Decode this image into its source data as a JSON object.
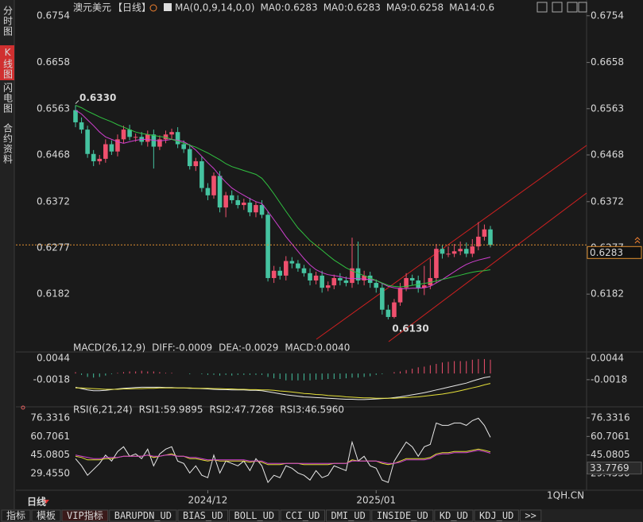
{
  "ui": {
    "side_tabs": [
      "分时图",
      "K线图",
      "闪电图",
      "合约资料"
    ],
    "active_side_tab": 1,
    "bottom_tabs": [
      "指标",
      "模板",
      "VIP指标",
      "BARUPDN_UD",
      "BIAS_UD",
      "BOLL_UD",
      "CCI_UD",
      "DMI_UD",
      "INSIDE_UD",
      "KD_UD",
      "KDJ_UD",
      ">>"
    ],
    "active_bottom_tab": 2,
    "period": "日线",
    "watermark": "1QH.CN"
  },
  "chart_data": [
    {
      "type": "candlestick",
      "title": "澳元美元",
      "period_tag": "【日线】",
      "indicator": "MA(0,0,9,14,0,0)",
      "legend_items": [
        {
          "text": "MA0:0.6283",
          "color": "#e8e8e8"
        },
        {
          "text": "MA0:0.6283",
          "color": "#e6e03a"
        }
      ],
      "up_color": "#f0506e",
      "down_color": "#45c3a0",
      "categories": [
        null,
        null,
        null,
        null,
        null,
        null,
        null,
        null,
        null,
        null,
        null,
        null,
        null,
        null,
        null,
        null,
        null,
        null,
        null,
        null,
        null,
        null,
        "2024/12",
        null,
        null,
        null,
        null,
        null,
        null,
        null,
        null,
        null,
        null,
        null,
        null,
        null,
        null,
        null,
        null,
        null,
        null,
        null,
        null,
        null,
        null,
        null,
        null,
        null,
        null,
        null,
        "2025/01",
        null,
        null,
        null,
        null,
        null,
        null,
        null,
        null,
        null,
        null,
        null,
        null,
        null,
        null,
        null,
        null,
        null,
        null,
        null
      ],
      "open": [
        0.656,
        0.6535,
        0.652,
        0.647,
        0.6455,
        0.646,
        0.649,
        0.6475,
        0.65,
        0.652,
        0.6505,
        0.6505,
        0.6495,
        0.651,
        0.6485,
        0.65,
        0.651,
        0.6515,
        0.649,
        0.648,
        0.6445,
        0.6455,
        0.64,
        0.6385,
        0.6425,
        0.636,
        0.6385,
        0.6375,
        0.6365,
        0.637,
        0.635,
        0.6365,
        0.6345,
        0.6215,
        0.623,
        0.622,
        0.625,
        0.6245,
        0.6235,
        0.6225,
        0.621,
        0.622,
        0.6195,
        0.62,
        0.6215,
        0.621,
        0.6205,
        0.6235,
        0.621,
        0.622,
        0.6205,
        0.6195,
        0.615,
        0.6135,
        0.6165,
        0.6195,
        0.6215,
        0.621,
        0.6195,
        0.62,
        0.6215,
        0.6275,
        0.6265,
        0.6265,
        0.627,
        0.6275,
        0.6265,
        0.628,
        0.63,
        0.6315
      ],
      "high": [
        0.657,
        0.6545,
        0.6528,
        0.6478,
        0.6468,
        0.65,
        0.6498,
        0.651,
        0.6528,
        0.653,
        0.6512,
        0.6515,
        0.6518,
        0.652,
        0.6508,
        0.6518,
        0.6522,
        0.6525,
        0.6498,
        0.649,
        0.6462,
        0.6465,
        0.641,
        0.6432,
        0.6435,
        0.6392,
        0.6395,
        0.6385,
        0.6378,
        0.638,
        0.6372,
        0.6375,
        0.6352,
        0.624,
        0.6238,
        0.626,
        0.6258,
        0.6252,
        0.6242,
        0.6235,
        0.6228,
        0.623,
        0.6208,
        0.6222,
        0.6225,
        0.6218,
        0.6298,
        0.629,
        0.623,
        0.6228,
        0.6212,
        0.6205,
        0.616,
        0.6172,
        0.6205,
        0.6225,
        0.6222,
        0.622,
        0.624,
        0.6255,
        0.6285,
        0.6282,
        0.628,
        0.6285,
        0.629,
        0.6288,
        0.6295,
        0.633,
        0.6325,
        0.6322
      ],
      "low": [
        0.6525,
        0.6512,
        0.6462,
        0.6445,
        0.6448,
        0.6452,
        0.6468,
        0.6465,
        0.6492,
        0.6498,
        0.6495,
        0.6488,
        0.6485,
        0.644,
        0.6478,
        0.6492,
        0.65,
        0.6482,
        0.6472,
        0.6438,
        0.6435,
        0.6392,
        0.6375,
        0.6378,
        0.635,
        0.634,
        0.6368,
        0.6358,
        0.6355,
        0.6342,
        0.634,
        0.6338,
        0.6208,
        0.6205,
        0.6212,
        0.621,
        0.6235,
        0.6228,
        0.6218,
        0.62,
        0.6202,
        0.6185,
        0.6188,
        0.6192,
        0.62,
        0.6198,
        0.6195,
        0.6202,
        0.62,
        0.6195,
        0.6185,
        0.614,
        0.613,
        0.6132,
        0.6158,
        0.6188,
        0.62,
        0.6185,
        0.618,
        0.6192,
        0.6205,
        0.6255,
        0.6258,
        0.6258,
        0.6262,
        0.6258,
        0.6258,
        0.6272,
        0.6292,
        0.6278
      ],
      "close": [
        0.6535,
        0.652,
        0.647,
        0.6455,
        0.646,
        0.649,
        0.6475,
        0.65,
        0.652,
        0.6505,
        0.6505,
        0.6495,
        0.651,
        0.6485,
        0.65,
        0.651,
        0.6515,
        0.649,
        0.648,
        0.6445,
        0.6455,
        0.64,
        0.6385,
        0.6425,
        0.636,
        0.6385,
        0.6375,
        0.6365,
        0.637,
        0.635,
        0.6365,
        0.6345,
        0.6215,
        0.623,
        0.622,
        0.625,
        0.6245,
        0.6235,
        0.6225,
        0.621,
        0.622,
        0.6195,
        0.62,
        0.6215,
        0.621,
        0.6205,
        0.6235,
        0.621,
        0.622,
        0.6205,
        0.6195,
        0.615,
        0.6135,
        0.6165,
        0.6195,
        0.6215,
        0.621,
        0.6195,
        0.62,
        0.6215,
        0.6275,
        0.6265,
        0.6265,
        0.627,
        0.6275,
        0.6265,
        0.628,
        0.63,
        0.6315,
        0.6283
      ],
      "series": [
        {
          "name": "MA9:0.6258",
          "color": "#d040d0",
          "values": [
            0.656,
            0.6552,
            0.654,
            0.6528,
            0.6515,
            0.6505,
            0.65,
            0.6495,
            0.6492,
            0.6495,
            0.6498,
            0.65,
            0.65,
            0.6498,
            0.6497,
            0.6498,
            0.65,
            0.6498,
            0.6495,
            0.6488,
            0.6478,
            0.6465,
            0.6452,
            0.644,
            0.6425,
            0.6412,
            0.64,
            0.6392,
            0.6385,
            0.6378,
            0.6372,
            0.6368,
            0.6352,
            0.6335,
            0.6318,
            0.63,
            0.6285,
            0.627,
            0.6255,
            0.6242,
            0.6232,
            0.6226,
            0.6222,
            0.622,
            0.6218,
            0.6215,
            0.6214,
            0.6214,
            0.6213,
            0.6212,
            0.621,
            0.6204,
            0.6198,
            0.6195,
            0.6193,
            0.6193,
            0.6194,
            0.6194,
            0.6195,
            0.6198,
            0.6205,
            0.6212,
            0.622,
            0.6228,
            0.6236,
            0.6243,
            0.6248,
            0.6252,
            0.6255,
            0.6258
          ]
        },
        {
          "name": "MA14:0.6",
          "color": "#30c040",
          "values": [
            0.657,
            0.6565,
            0.6558,
            0.6552,
            0.6546,
            0.6541,
            0.6536,
            0.653,
            0.6525,
            0.652,
            0.6515,
            0.6512,
            0.651,
            0.6508,
            0.6506,
            0.6504,
            0.65,
            0.6496,
            0.6492,
            0.6488,
            0.6484,
            0.6478,
            0.6472,
            0.6465,
            0.6458,
            0.645,
            0.6444,
            0.644,
            0.6436,
            0.6432,
            0.6428,
            0.642,
            0.6405,
            0.6388,
            0.637,
            0.6352,
            0.6335,
            0.6318,
            0.6305,
            0.6292,
            0.6282,
            0.6272,
            0.6262,
            0.6252,
            0.6244,
            0.6236,
            0.623,
            0.6225,
            0.622,
            0.6215,
            0.621,
            0.6205,
            0.62,
            0.6198,
            0.6197,
            0.6198,
            0.62,
            0.6202,
            0.6204,
            0.6206,
            0.6209,
            0.6212,
            0.6215,
            0.6218,
            0.6221,
            0.6224,
            0.6227,
            0.6229,
            0.623,
            0.6232
          ]
        }
      ],
      "high_label": "0.6330",
      "low_label": "0.6130",
      "last_price": 0.6283,
      "ylim": [
        0.6068,
        0.677
      ],
      "yticks": [
        0.6754,
        0.6658,
        0.6563,
        0.6468,
        0.6372,
        0.6277,
        0.6182
      ]
    },
    {
      "type": "macd",
      "title": "MACD(26,12,9)",
      "up_color": "#f0506e",
      "down_color": "#45c3a0",
      "series": [
        {
          "name": "DIFF:-0.0009",
          "color": "#e8e8e8",
          "values": [
            -0.004,
            -0.0044,
            -0.0048,
            -0.005,
            -0.005,
            -0.0049,
            -0.0047,
            -0.0045,
            -0.0043,
            -0.0042,
            -0.0041,
            -0.004,
            -0.004,
            -0.004,
            -0.004,
            -0.0041,
            -0.0041,
            -0.0042,
            -0.0042,
            -0.0043,
            -0.0043,
            -0.0044,
            -0.0045,
            -0.0046,
            -0.0047,
            -0.0047,
            -0.0048,
            -0.0048,
            -0.0048,
            -0.0049,
            -0.0049,
            -0.005,
            -0.0053,
            -0.0056,
            -0.0059,
            -0.0062,
            -0.0064,
            -0.0066,
            -0.0068,
            -0.0069,
            -0.007,
            -0.0071,
            -0.0072,
            -0.0073,
            -0.0074,
            -0.0075,
            -0.0075,
            -0.0076,
            -0.0076,
            -0.0075,
            -0.0074,
            -0.0073,
            -0.0072,
            -0.007,
            -0.0068,
            -0.0065,
            -0.0062,
            -0.0059,
            -0.0056,
            -0.0052,
            -0.0048,
            -0.0044,
            -0.004,
            -0.0036,
            -0.0032,
            -0.0028,
            -0.0022,
            -0.0017,
            -0.0012,
            -0.0009
          ]
        },
        {
          "name": "DEA:-0.0029",
          "color": "#e6e03a",
          "values": [
            -0.0042,
            -0.0042,
            -0.0043,
            -0.0044,
            -0.0045,
            -0.0046,
            -0.0046,
            -0.0046,
            -0.0045,
            -0.0045,
            -0.0044,
            -0.0044,
            -0.0043,
            -0.0043,
            -0.0042,
            -0.0042,
            -0.0042,
            -0.0042,
            -0.0042,
            -0.0042,
            -0.0043,
            -0.0043,
            -0.0043,
            -0.0044,
            -0.0044,
            -0.0045,
            -0.0045,
            -0.0046,
            -0.0046,
            -0.0047,
            -0.0047,
            -0.0048,
            -0.0048,
            -0.0049,
            -0.0051,
            -0.0052,
            -0.0054,
            -0.0056,
            -0.0058,
            -0.0059,
            -0.0061,
            -0.0062,
            -0.0064,
            -0.0065,
            -0.0066,
            -0.0068,
            -0.0069,
            -0.007,
            -0.0071,
            -0.0071,
            -0.0072,
            -0.0072,
            -0.0072,
            -0.0072,
            -0.0071,
            -0.007,
            -0.0069,
            -0.0068,
            -0.0066,
            -0.0064,
            -0.0062,
            -0.006,
            -0.0057,
            -0.0054,
            -0.005,
            -0.0046,
            -0.0042,
            -0.0038,
            -0.0033,
            -0.0029
          ]
        }
      ],
      "histogram": {
        "name": "MACD:0.0040",
        "color": "#d040d0",
        "values": [
          0.0004,
          -0.0004,
          -0.001,
          -0.0012,
          -0.001,
          -0.0006,
          -0.0002,
          0.0002,
          0.0004,
          0.0006,
          0.0006,
          0.0008,
          0.0006,
          0.0006,
          0.0004,
          0.0002,
          0.0002,
          0,
          0,
          -0.0002,
          0,
          -0.0002,
          -0.0004,
          -0.0004,
          -0.0006,
          -0.0004,
          -0.0006,
          -0.0004,
          -0.0004,
          -0.0004,
          -0.0004,
          -0.0004,
          -0.001,
          -0.0014,
          -0.0016,
          -0.002,
          -0.002,
          -0.002,
          -0.002,
          -0.002,
          -0.0018,
          -0.0018,
          -0.0016,
          -0.0016,
          -0.0016,
          -0.0014,
          -0.0012,
          -0.0012,
          -0.001,
          -0.0008,
          -0.0004,
          -0.0002,
          0,
          0.0004,
          0.0006,
          0.001,
          0.0014,
          0.0018,
          0.002,
          0.0024,
          0.0028,
          0.0032,
          0.0034,
          0.0036,
          0.0036,
          0.0036,
          0.004,
          0.0042,
          0.0042,
          0.004
        ]
      },
      "ylim": [
        -0.009,
        0.0058
      ],
      "yticks": [
        0.0044,
        -0.0018
      ]
    },
    {
      "type": "rsi",
      "title": "RSI(6,21,24)",
      "series": [
        {
          "name": "RSI1:59.9895",
          "color": "#e8e8e8",
          "values": [
            42,
            36,
            28,
            33,
            38,
            45,
            40,
            48,
            52,
            44,
            46,
            42,
            50,
            36,
            46,
            50,
            52,
            40,
            38,
            30,
            36,
            28,
            26,
            45,
            30,
            40,
            38,
            36,
            40,
            32,
            42,
            36,
            22,
            28,
            26,
            36,
            34,
            30,
            28,
            24,
            32,
            26,
            28,
            36,
            34,
            32,
            56,
            40,
            44,
            36,
            34,
            24,
            22,
            40,
            48,
            56,
            52,
            44,
            52,
            54,
            72,
            70,
            70,
            72,
            72,
            70,
            74,
            76,
            70,
            59.9895
          ]
        },
        {
          "name": "RSI2:47.7268",
          "color": "#e6e03a",
          "values": [
            44,
            43,
            41,
            41,
            41,
            42,
            42,
            43,
            44,
            44,
            44,
            44,
            45,
            43,
            44,
            45,
            46,
            44,
            44,
            42,
            42,
            41,
            40,
            41,
            40,
            40,
            40,
            40,
            40,
            39,
            40,
            39,
            37,
            37,
            37,
            38,
            38,
            38,
            37,
            37,
            37,
            37,
            37,
            38,
            38,
            38,
            41,
            40,
            40,
            40,
            40,
            38,
            37,
            38,
            40,
            42,
            42,
            42,
            42,
            43,
            46,
            47,
            47,
            48,
            48,
            48,
            49,
            50,
            49,
            47.7268
          ]
        },
        {
          "name": "RSI3:46.5960",
          "color": "#d040d0",
          "values": [
            45,
            44,
            43,
            42,
            42,
            43,
            43,
            43,
            44,
            44,
            44,
            44,
            45,
            44,
            44,
            45,
            45,
            44,
            44,
            43,
            43,
            42,
            41,
            41,
            41,
            41,
            41,
            41,
            41,
            40,
            40,
            40,
            38,
            38,
            38,
            38,
            38,
            38,
            38,
            38,
            38,
            38,
            38,
            38,
            38,
            38,
            40,
            40,
            40,
            40,
            40,
            39,
            38,
            38,
            39,
            41,
            41,
            41,
            41,
            42,
            45,
            46,
            46,
            47,
            47,
            47,
            48,
            49,
            48,
            46.596
          ]
        }
      ],
      "readout": 33.7769,
      "ylim": [
        16.8,
        83.65
      ],
      "yticks": [
        76.3316,
        60.7061,
        45.0805,
        {
          "value": 29.455,
          "label": "29.4550"
        }
      ]
    }
  ]
}
